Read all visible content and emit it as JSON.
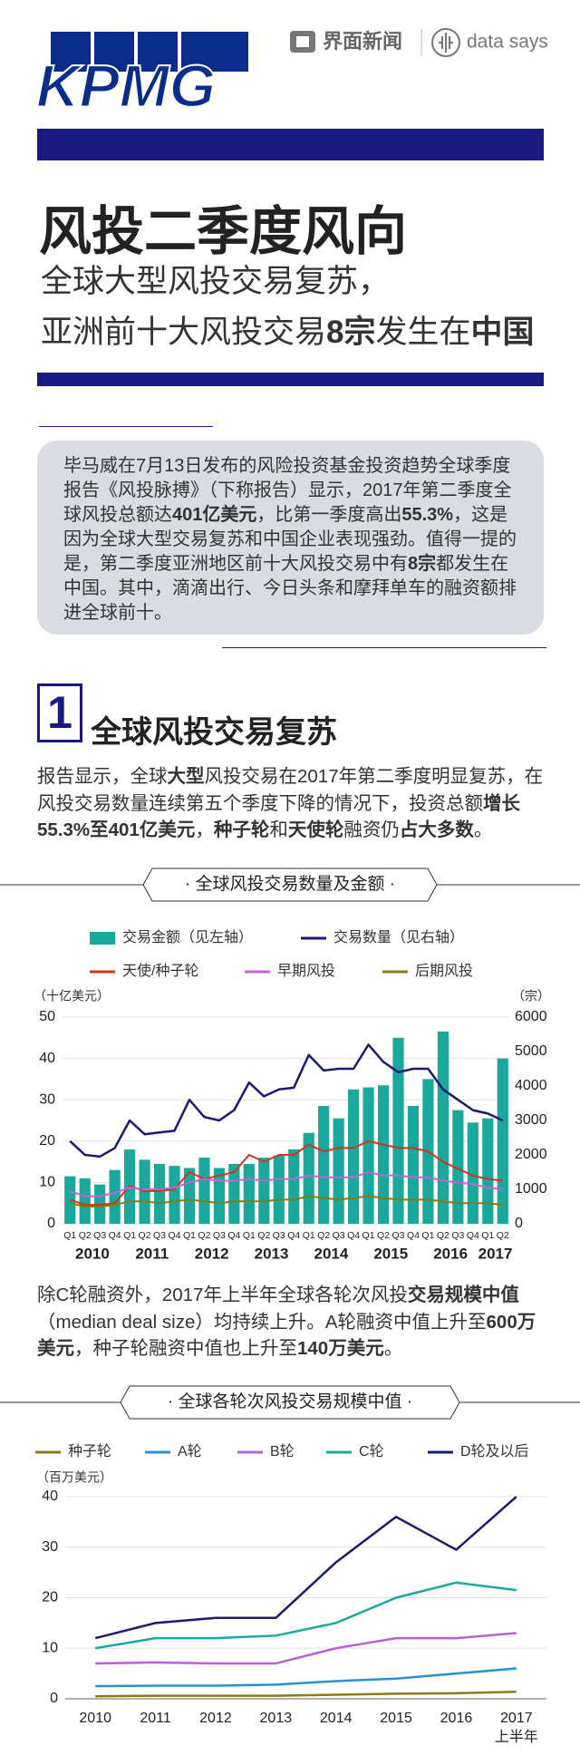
{
  "header": {
    "logo": "KPMG",
    "source": "界面新闻",
    "brand": "data says"
  },
  "title": "风投二季度风向",
  "subtitle": [
    [
      {
        "text": "全球大型风投交易复苏，",
        "bold": false
      }
    ],
    [
      {
        "text": "亚洲前十大风投交易",
        "bold": false
      },
      {
        "text": "8宗",
        "bold": true
      },
      {
        "text": "发生在",
        "bold": false
      },
      {
        "text": "中国",
        "bold": true
      }
    ]
  ],
  "intro": [
    {
      "text": "毕马威在7月13日发布的风险投资基金投资趋势全球季度报告《风投脉搏》（下称报告）显示，2017年第二季度全球风投总额达",
      "bold": false
    },
    {
      "text": "401亿美元",
      "bold": true
    },
    {
      "text": "，比第一季度高出",
      "bold": false
    },
    {
      "text": "55.3%",
      "bold": true
    },
    {
      "text": "，这是因为全球大型交易复苏和中国企业表现强劲。值得一提的是，第二季度亚洲地区前十大风投交易中有",
      "bold": false
    },
    {
      "text": "8宗",
      "bold": true
    },
    {
      "text": "都发生在中国。其中，滴滴出行、今日头条和摩拜单车的融资额排进全球前十。",
      "bold": false
    }
  ],
  "section": {
    "number": "1",
    "heading": "全球风投交易复苏"
  },
  "paragraphs": [
    [
      {
        "text": "报告显示，全球",
        "bold": false
      },
      {
        "text": "大型",
        "bold": true
      },
      {
        "text": "风投交易在2017年第二季度明显复苏，在风投交易数量连续第五个季度下降的情况下，投资总额",
        "bold": false
      },
      {
        "text": "增长55.3%至401亿美元",
        "bold": true
      },
      {
        "text": "，",
        "bold": false
      },
      {
        "text": "种子轮",
        "bold": true
      },
      {
        "text": "和",
        "bold": false
      },
      {
        "text": "天使轮",
        "bold": true
      },
      {
        "text": "融资仍",
        "bold": false
      },
      {
        "text": "占大多数",
        "bold": true
      },
      {
        "text": "。",
        "bold": false
      }
    ],
    [
      {
        "text": "除C轮融资外，2017年上半年全球各轮次风投",
        "bold": false
      },
      {
        "text": "交易规模中值",
        "bold": true
      },
      {
        "text": "（median deal size）均持续上升。A轮融资中值上升至",
        "bold": false
      },
      {
        "text": "600万美元",
        "bold": true
      },
      {
        "text": "，种子轮融资中值也上升至",
        "bold": false
      },
      {
        "text": "140万美元",
        "bold": true
      },
      {
        "text": "。",
        "bold": false
      }
    ]
  ],
  "chart_data": [
    {
      "type": "combo",
      "title": "· 全球风投交易数量及金额 ·",
      "y_label": "（十亿美元）",
      "y2_label": "（宗）",
      "categories": [
        "Q1",
        "Q2",
        "Q3",
        "Q4",
        "Q1",
        "Q2",
        "Q3",
        "Q4",
        "Q1",
        "Q2",
        "Q3",
        "Q4",
        "Q1",
        "Q2",
        "Q3",
        "Q4",
        "Q1",
        "Q2",
        "Q3",
        "Q4",
        "Q1",
        "Q2",
        "Q3",
        "Q4",
        "Q1",
        "Q2",
        "Q3",
        "Q4",
        "Q1",
        "Q2"
      ],
      "year_labels": [
        "2010",
        "2011",
        "2012",
        "2013",
        "2014",
        "2015",
        "2016",
        "2017"
      ],
      "ylim": [
        0,
        50
      ],
      "yticks": [
        0,
        10,
        20,
        30,
        40,
        50
      ],
      "y2lim": [
        0,
        6000
      ],
      "y2ticks": [
        0,
        1000,
        2000,
        3000,
        4000,
        5000,
        6000
      ],
      "grid": true,
      "series": [
        {
          "name": "交易金额（见左轴）",
          "type": "bar",
          "color": "#19a89b",
          "values": [
            11.5,
            11,
            9.5,
            13,
            18,
            15.5,
            14.5,
            14,
            13.5,
            16,
            13.5,
            14.5,
            14.5,
            16,
            16.5,
            18,
            22,
            28.5,
            25.5,
            32.5,
            33,
            33.5,
            45,
            28.5,
            35,
            46.5,
            27.5,
            24.5,
            25.5,
            40
          ]
        },
        {
          "name": "交易数量（见右轴）",
          "type": "line",
          "axis": "y2",
          "color": "#1b1a72",
          "values": [
            2400,
            2000,
            1950,
            2200,
            3000,
            2600,
            2650,
            2700,
            3600,
            3100,
            3000,
            3300,
            4100,
            3700,
            3900,
            3950,
            4900,
            4450,
            4500,
            4500,
            5200,
            4700,
            4400,
            4500,
            4500,
            3900,
            3600,
            3300,
            3200,
            3000
          ]
        },
        {
          "name": "天使/种子轮",
          "type": "line",
          "axis": "y2",
          "color": "#d0361e",
          "values": [
            700,
            550,
            550,
            600,
            1100,
            950,
            950,
            1000,
            1500,
            1300,
            1400,
            1500,
            2000,
            1800,
            2000,
            2000,
            2300,
            2100,
            2200,
            2200,
            2400,
            2300,
            2200,
            2200,
            2100,
            1800,
            1600,
            1400,
            1300,
            1250
          ]
        },
        {
          "name": "早期风投",
          "type": "line",
          "axis": "y2",
          "color": "#c264d2",
          "values": [
            950,
            800,
            800,
            900,
            1050,
            1000,
            1000,
            1050,
            1200,
            1300,
            1250,
            1250,
            1300,
            1250,
            1300,
            1300,
            1400,
            1350,
            1350,
            1350,
            1500,
            1400,
            1400,
            1350,
            1350,
            1250,
            1200,
            1150,
            1050,
            1000
          ]
        },
        {
          "name": "后期风投",
          "type": "line",
          "axis": "y2",
          "color": "#877a12",
          "values": [
            600,
            500,
            500,
            550,
            650,
            650,
            600,
            650,
            700,
            650,
            600,
            650,
            650,
            650,
            700,
            700,
            800,
            750,
            700,
            750,
            800,
            750,
            700,
            700,
            700,
            650,
            600,
            600,
            600,
            550
          ]
        }
      ]
    },
    {
      "type": "line",
      "title": "· 全球各轮次风投交易规模中值 ·",
      "y_label": "（百万美元）",
      "categories": [
        "2010",
        "2011",
        "2012",
        "2013",
        "2014",
        "2015",
        "2016",
        "2017"
      ],
      "category_note": "上半年",
      "ylim": [
        0,
        40
      ],
      "yticks": [
        0,
        10,
        20,
        30,
        40
      ],
      "grid": true,
      "series": [
        {
          "name": "种子轮",
          "color": "#8a7a1a",
          "values": [
            0.5,
            0.6,
            0.6,
            0.6,
            0.8,
            1,
            1.1,
            1.4
          ]
        },
        {
          "name": "A轮",
          "color": "#2a8fd4",
          "values": [
            2.5,
            2.6,
            2.6,
            2.8,
            3.5,
            4,
            5,
            6
          ]
        },
        {
          "name": "B轮",
          "color": "#b463d0",
          "values": [
            7,
            7.2,
            7,
            7,
            10,
            12,
            12,
            13
          ]
        },
        {
          "name": "C轮",
          "color": "#1aa8a0",
          "values": [
            10,
            12,
            12,
            12.5,
            15,
            20,
            23,
            21.5
          ]
        },
        {
          "name": "D轮及以后",
          "color": "#1a1a70",
          "values": [
            12,
            15,
            16,
            16,
            27,
            36,
            29.5,
            40
          ]
        }
      ]
    }
  ]
}
